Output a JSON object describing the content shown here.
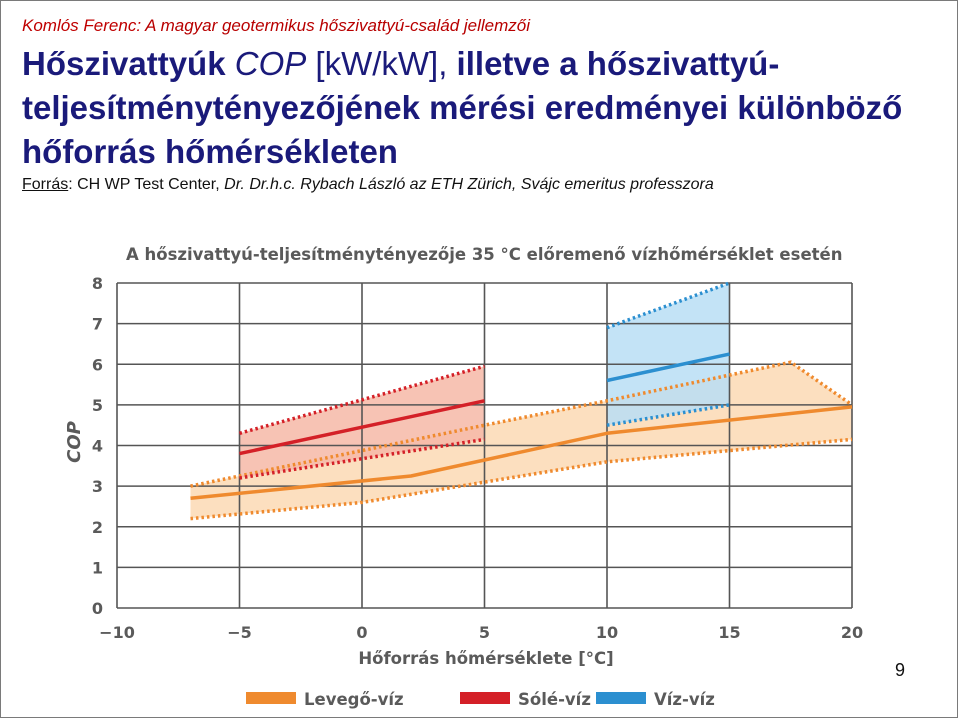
{
  "header": {
    "author": "Komlós Ferenc:",
    "subtitle": "A magyar geotermikus hőszivattyú-család jellemzői"
  },
  "title": {
    "part1": "Hőszivattyúk ",
    "cop": "COP",
    "unit": " [kW/kW],",
    "part2": " illetve a hőszivattyú-teljesítménytényezőjének mérési eredményei különböző hőforrás hőmérsékleten"
  },
  "source": {
    "label": "Forrás",
    "text": ": CH WP Test Center, ",
    "italic": "Dr. Dr.h.c. Rybach László az ETH Zürich, Svájc emeritus professzora"
  },
  "page_number": "9",
  "colors": {
    "air": "#ef8a2e",
    "air_band": "#fbd9b4",
    "brine": "#d42027",
    "brine_band": "#f6b9a7",
    "water": "#2b8fd0",
    "water_band": "#b8def4",
    "grid": "#555555",
    "axis_text": "#5a5a5a"
  },
  "chart_data": {
    "type": "line",
    "title": "A hőszivattyú-teljesítménytényezője 35 °C előremenő vízhőmérséklet esetén",
    "xlabel": "Hőforrás hőmérséklete [°C]",
    "ylabel": "COP",
    "xlim": [
      -10,
      20
    ],
    "ylim": [
      0,
      8
    ],
    "xticks": [
      "−10",
      "−5",
      "0",
      "5",
      "10",
      "15",
      "20"
    ],
    "yticks": [
      "0",
      "1",
      "2",
      "3",
      "4",
      "5",
      "6",
      "7",
      "8"
    ],
    "grid": true,
    "legend_position": "bottom",
    "series": [
      {
        "name": "Levegő-víz",
        "color": "#ef8a2e",
        "x": [
          -7,
          2,
          10,
          20
        ],
        "y": [
          2.7,
          3.25,
          4.3,
          4.95
        ],
        "band_upper": {
          "x": [
            -7,
            5,
            10,
            17.5,
            20
          ],
          "y": [
            3.0,
            4.5,
            5.1,
            6.05,
            5.0
          ]
        },
        "band_lower": {
          "x": [
            -7,
            0,
            10,
            20
          ],
          "y": [
            2.2,
            2.6,
            3.6,
            4.15
          ]
        }
      },
      {
        "name": "Sólé-víz",
        "color": "#d42027",
        "x": [
          -5,
          5
        ],
        "y": [
          3.8,
          5.1
        ],
        "band_upper": {
          "x": [
            -5,
            5
          ],
          "y": [
            4.3,
            5.95
          ]
        },
        "band_lower": {
          "x": [
            -5,
            5
          ],
          "y": [
            3.2,
            4.15
          ]
        }
      },
      {
        "name": "Víz-víz",
        "color": "#2b8fd0",
        "x": [
          10,
          15
        ],
        "y": [
          5.6,
          6.25
        ],
        "band_upper": {
          "x": [
            10,
            15
          ],
          "y": [
            6.9,
            8.0
          ]
        },
        "band_lower": {
          "x": [
            10,
            15
          ],
          "y": [
            4.5,
            5.0
          ]
        }
      }
    ]
  }
}
